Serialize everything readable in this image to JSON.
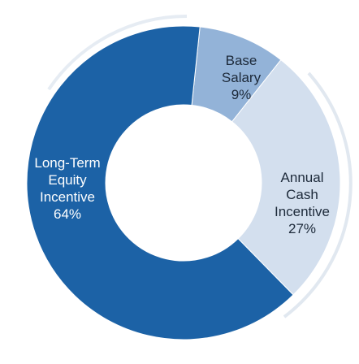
{
  "chart_data": {
    "type": "donut",
    "categories": [
      "Base Salary",
      "Annual Cash Incentive",
      "Long-Term Equity Incentive"
    ],
    "values": [
      9,
      27,
      64
    ],
    "value_labels": [
      "9%",
      "27%",
      "64%"
    ],
    "colors": [
      "#93b3d8",
      "#d3dfee",
      "#1c62a6"
    ]
  }
}
